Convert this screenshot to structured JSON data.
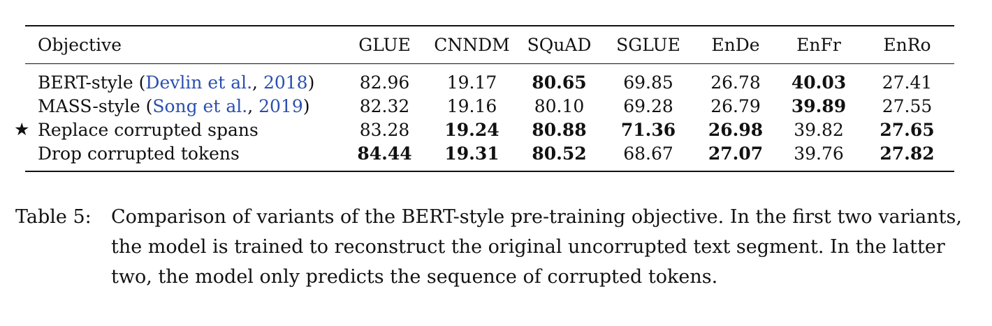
{
  "table": {
    "headers": [
      "Objective",
      "GLUE",
      "CNNDM",
      "SQuAD",
      "SGLUE",
      "EnDe",
      "EnFr",
      "EnRo"
    ],
    "rows": [
      {
        "marker": "",
        "prefix": "BERT-style (",
        "cite_author": "Devlin et al.",
        "cite_sep": ", ",
        "cite_year": "2018",
        "suffix": ")",
        "values": [
          "82.96",
          "19.17",
          "80.65",
          "69.85",
          "26.78",
          "40.03",
          "27.41"
        ],
        "bold": [
          false,
          false,
          true,
          false,
          false,
          true,
          false
        ]
      },
      {
        "marker": "",
        "prefix": "MASS-style (",
        "cite_author": "Song et al.",
        "cite_sep": ", ",
        "cite_year": "2019",
        "suffix": ")",
        "values": [
          "82.32",
          "19.16",
          "80.10",
          "69.28",
          "26.79",
          "39.89",
          "27.55"
        ],
        "bold": [
          false,
          false,
          false,
          false,
          false,
          true,
          false
        ]
      },
      {
        "marker": "★",
        "prefix": "Replace corrupted spans",
        "values": [
          "83.28",
          "19.24",
          "80.88",
          "71.36",
          "26.98",
          "39.82",
          "27.65"
        ],
        "bold": [
          false,
          true,
          true,
          true,
          true,
          false,
          true
        ]
      },
      {
        "marker": "",
        "prefix": "Drop corrupted tokens",
        "values": [
          "84.44",
          "19.31",
          "80.52",
          "68.67",
          "27.07",
          "39.76",
          "27.82"
        ],
        "bold": [
          true,
          true,
          true,
          false,
          true,
          false,
          true
        ]
      }
    ]
  },
  "caption": {
    "label": "Table 5:",
    "text": "Comparison of variants of the BERT-style pre-training objective. In the first two variants, the model is trained to reconstruct the original uncorrupted text segment. In the latter two, the model only predicts the sequence of corrupted tokens."
  },
  "colors": {
    "citation": "#2a4fb0",
    "text": "#111111"
  }
}
